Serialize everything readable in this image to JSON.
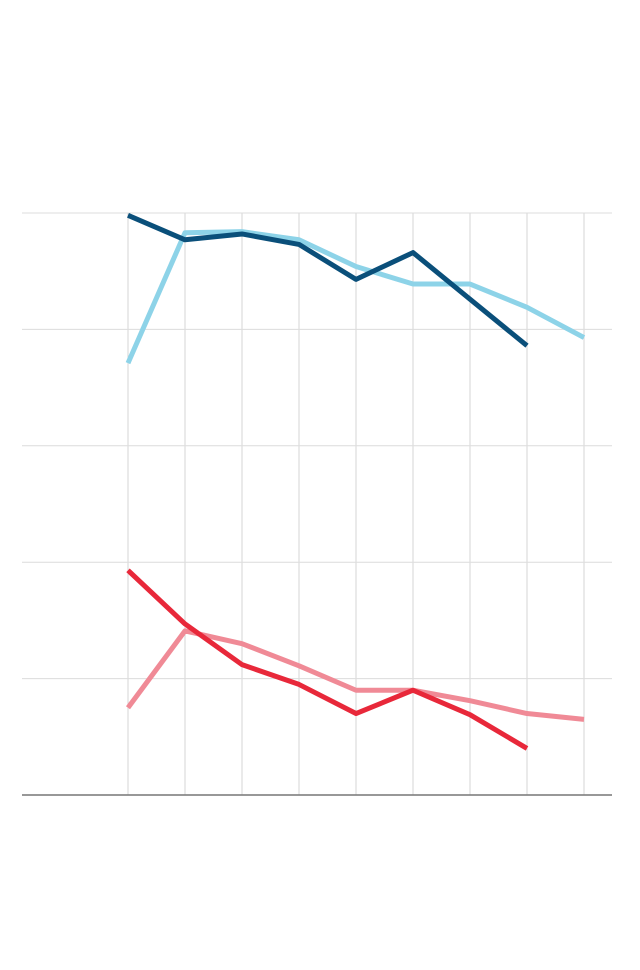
{
  "chart_data": {
    "type": "line",
    "categories": [
      null,
      null,
      null,
      null,
      null,
      null,
      null,
      null,
      null
    ],
    "ylim": [
      0,
      5
    ],
    "yticks": [
      0,
      1,
      2,
      3,
      4,
      5
    ],
    "grid": true,
    "series": [
      {
        "color": "#8dd3e8",
        "values": [
          3.71,
          4.83,
          4.84,
          4.77,
          4.54,
          4.39,
          4.39,
          4.19,
          3.93
        ]
      },
      {
        "color": "#0a4f7a",
        "values": [
          4.98,
          4.77,
          4.82,
          4.73,
          4.43,
          4.66,
          4.26,
          3.86,
          null
        ]
      },
      {
        "color": "#f08a96",
        "values": [
          0.75,
          1.41,
          1.3,
          1.11,
          0.9,
          0.9,
          0.81,
          0.7,
          0.65
        ]
      },
      {
        "color": "#e8283a",
        "values": [
          1.93,
          1.47,
          1.12,
          0.95,
          0.7,
          0.9,
          0.69,
          0.4,
          null
        ]
      }
    ]
  }
}
